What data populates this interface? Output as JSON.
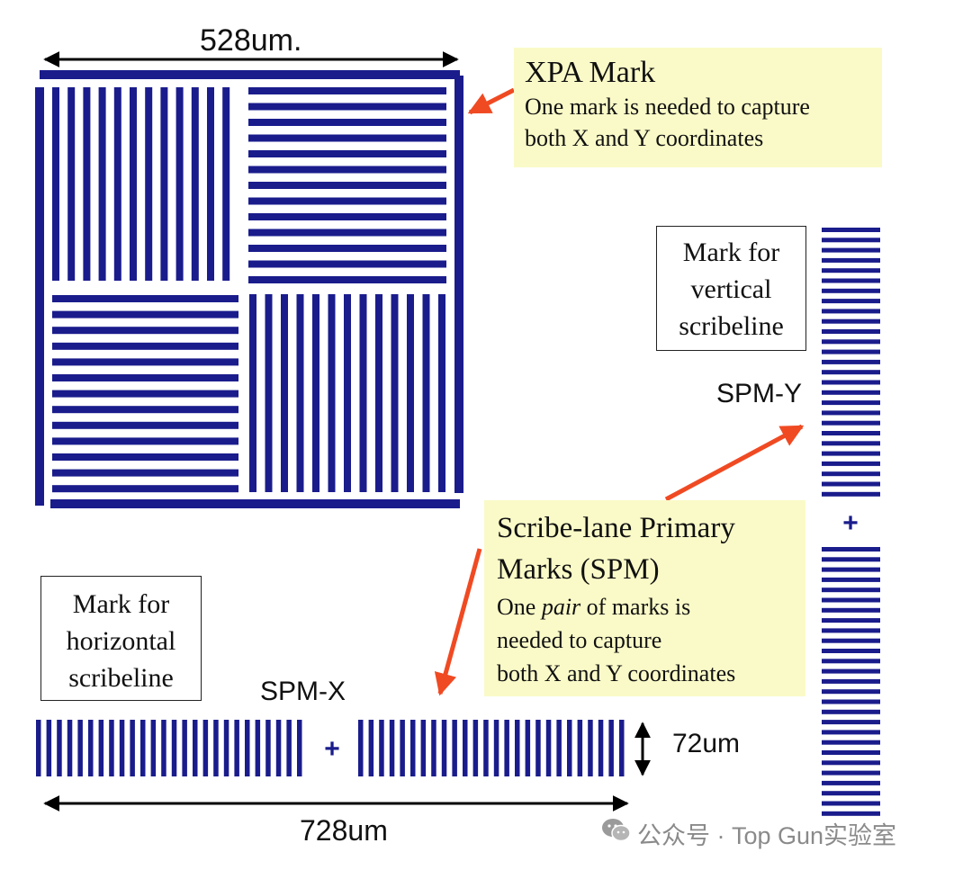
{
  "colors": {
    "mark_blue": "#1a1c8c",
    "arrow_red": "#f04a23",
    "callout_bg": "#fafac8",
    "dim_black": "#000000",
    "watermark_gray": "#8a8a8a"
  },
  "dimensions": {
    "xpa_width": "528um.",
    "spm_x_length": "728um",
    "spm_height": "72um"
  },
  "xpa_callout": {
    "title": "XPA Mark",
    "line1": "One mark is needed to capture",
    "line2": "both X and Y coordinates"
  },
  "spm_callout": {
    "title_line1": "Scribe-lane Primary",
    "title_line2": "Marks (SPM)",
    "line1_pre": "One ",
    "line1_em": "pair",
    "line1_post": " of marks is",
    "line2": "needed to capture",
    "line3": "both X and Y coordinates"
  },
  "vertical_box": {
    "line1": "Mark for",
    "line2": "vertical",
    "line3": "scribeline"
  },
  "horizontal_box": {
    "line1": "Mark for",
    "line2": "horizontal",
    "line3": "scribeline"
  },
  "spm_y_label": "SPM-Y",
  "spm_x_label": "SPM-X",
  "plus_symbol": "+",
  "watermark": "公众号 · Top Gun实验室",
  "watermark_icon": "wechat-icon"
}
